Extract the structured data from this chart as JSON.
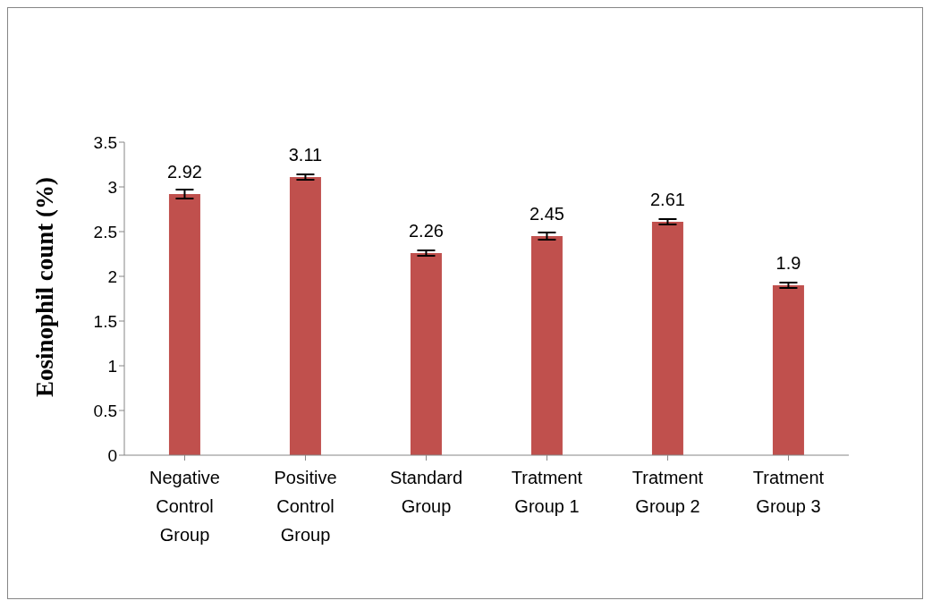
{
  "chart_data": {
    "type": "bar",
    "ylabel": "Eosinophil count  (%)",
    "categories": [
      "Negative Control Group",
      "Positive Control Group",
      "Standard Group",
      "Tratment Group 1",
      "Tratment Group 2",
      "Tratment Group 3"
    ],
    "values": [
      2.92,
      3.11,
      2.26,
      2.45,
      2.61,
      1.9
    ],
    "errors": [
      0.05,
      0.03,
      0.03,
      0.04,
      0.03,
      0.03
    ],
    "color": "#c0504d",
    "ylim": [
      0,
      3.5
    ],
    "yticks": [
      0,
      0.5,
      1,
      1.5,
      2,
      2.5,
      3,
      3.5
    ],
    "data_labels": true,
    "grid": false,
    "legend": false
  }
}
